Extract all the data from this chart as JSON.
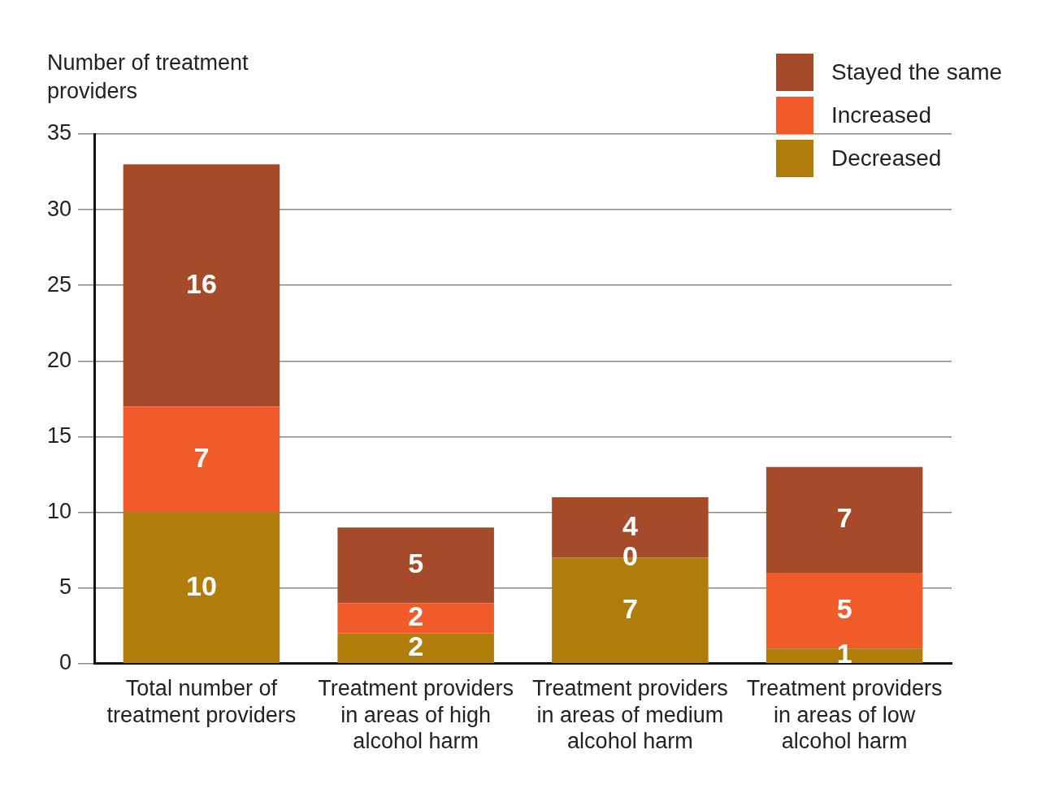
{
  "chart_data": {
    "type": "bar",
    "stacked": true,
    "ylabel": "Number of treatment providers",
    "categories": [
      "Total number of treatment providers",
      "Treatment providers in areas of high alcohol harm",
      "Treatment providers in areas of medium alcohol harm",
      "Treatment providers in areas of low alcohol harm"
    ],
    "series": [
      {
        "name": "Decreased",
        "color": "#b07d0a",
        "values": [
          10,
          2,
          7,
          1
        ]
      },
      {
        "name": "Increased",
        "color": "#f15a29",
        "values": [
          7,
          2,
          0,
          5
        ]
      },
      {
        "name": "Stayed the same",
        "color": "#a64b2a",
        "values": [
          16,
          5,
          4,
          7
        ]
      }
    ],
    "ylim": [
      0,
      35
    ],
    "yticks": [
      0,
      5,
      10,
      15,
      20,
      25,
      30,
      35
    ],
    "grid": "y",
    "legend": "top right",
    "data_labels": true
  }
}
